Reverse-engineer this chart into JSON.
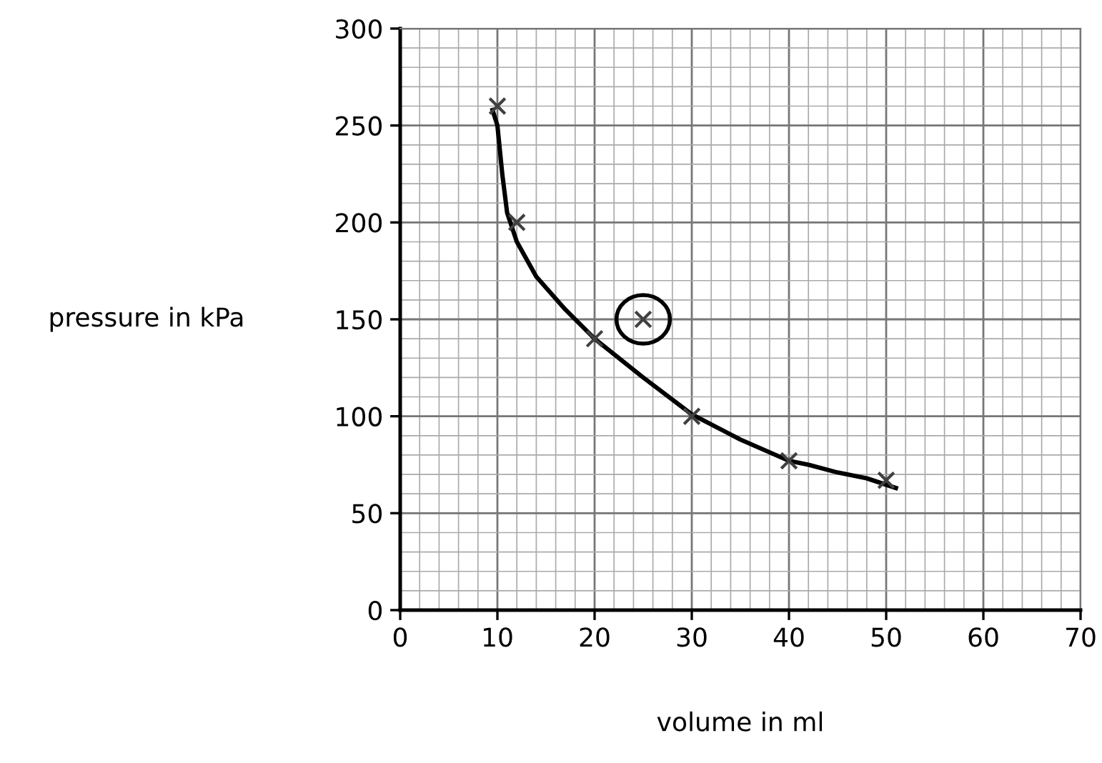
{
  "chart_data": {
    "type": "scatter",
    "xlabel": "volume in ml",
    "ylabel": "pressure in kPa",
    "xlim": [
      0,
      70
    ],
    "xticks": [
      0,
      10,
      20,
      30,
      40,
      50,
      60,
      70
    ],
    "ylim": [
      0,
      300
    ],
    "yticks": [
      0,
      50,
      100,
      150,
      200,
      250,
      300
    ],
    "grid": true,
    "series": [
      {
        "color": "#404040",
        "marker": "cross",
        "x": [
          10,
          12,
          20,
          25,
          30,
          40,
          50
        ],
        "values": [
          260,
          200,
          140,
          150,
          100,
          77,
          67
        ]
      },
      {
        "type": "line",
        "color": "#000000",
        "marker": "none",
        "line_style": "solid",
        "x": [
          9.5,
          10,
          10.5,
          11,
          12,
          14,
          17,
          20,
          25,
          30,
          35,
          40,
          42,
          45,
          48,
          51
        ],
        "values": [
          258,
          250,
          225,
          205,
          190,
          172,
          155,
          140,
          120,
          101,
          88,
          77,
          75,
          71,
          68,
          63
        ]
      }
    ]
  }
}
